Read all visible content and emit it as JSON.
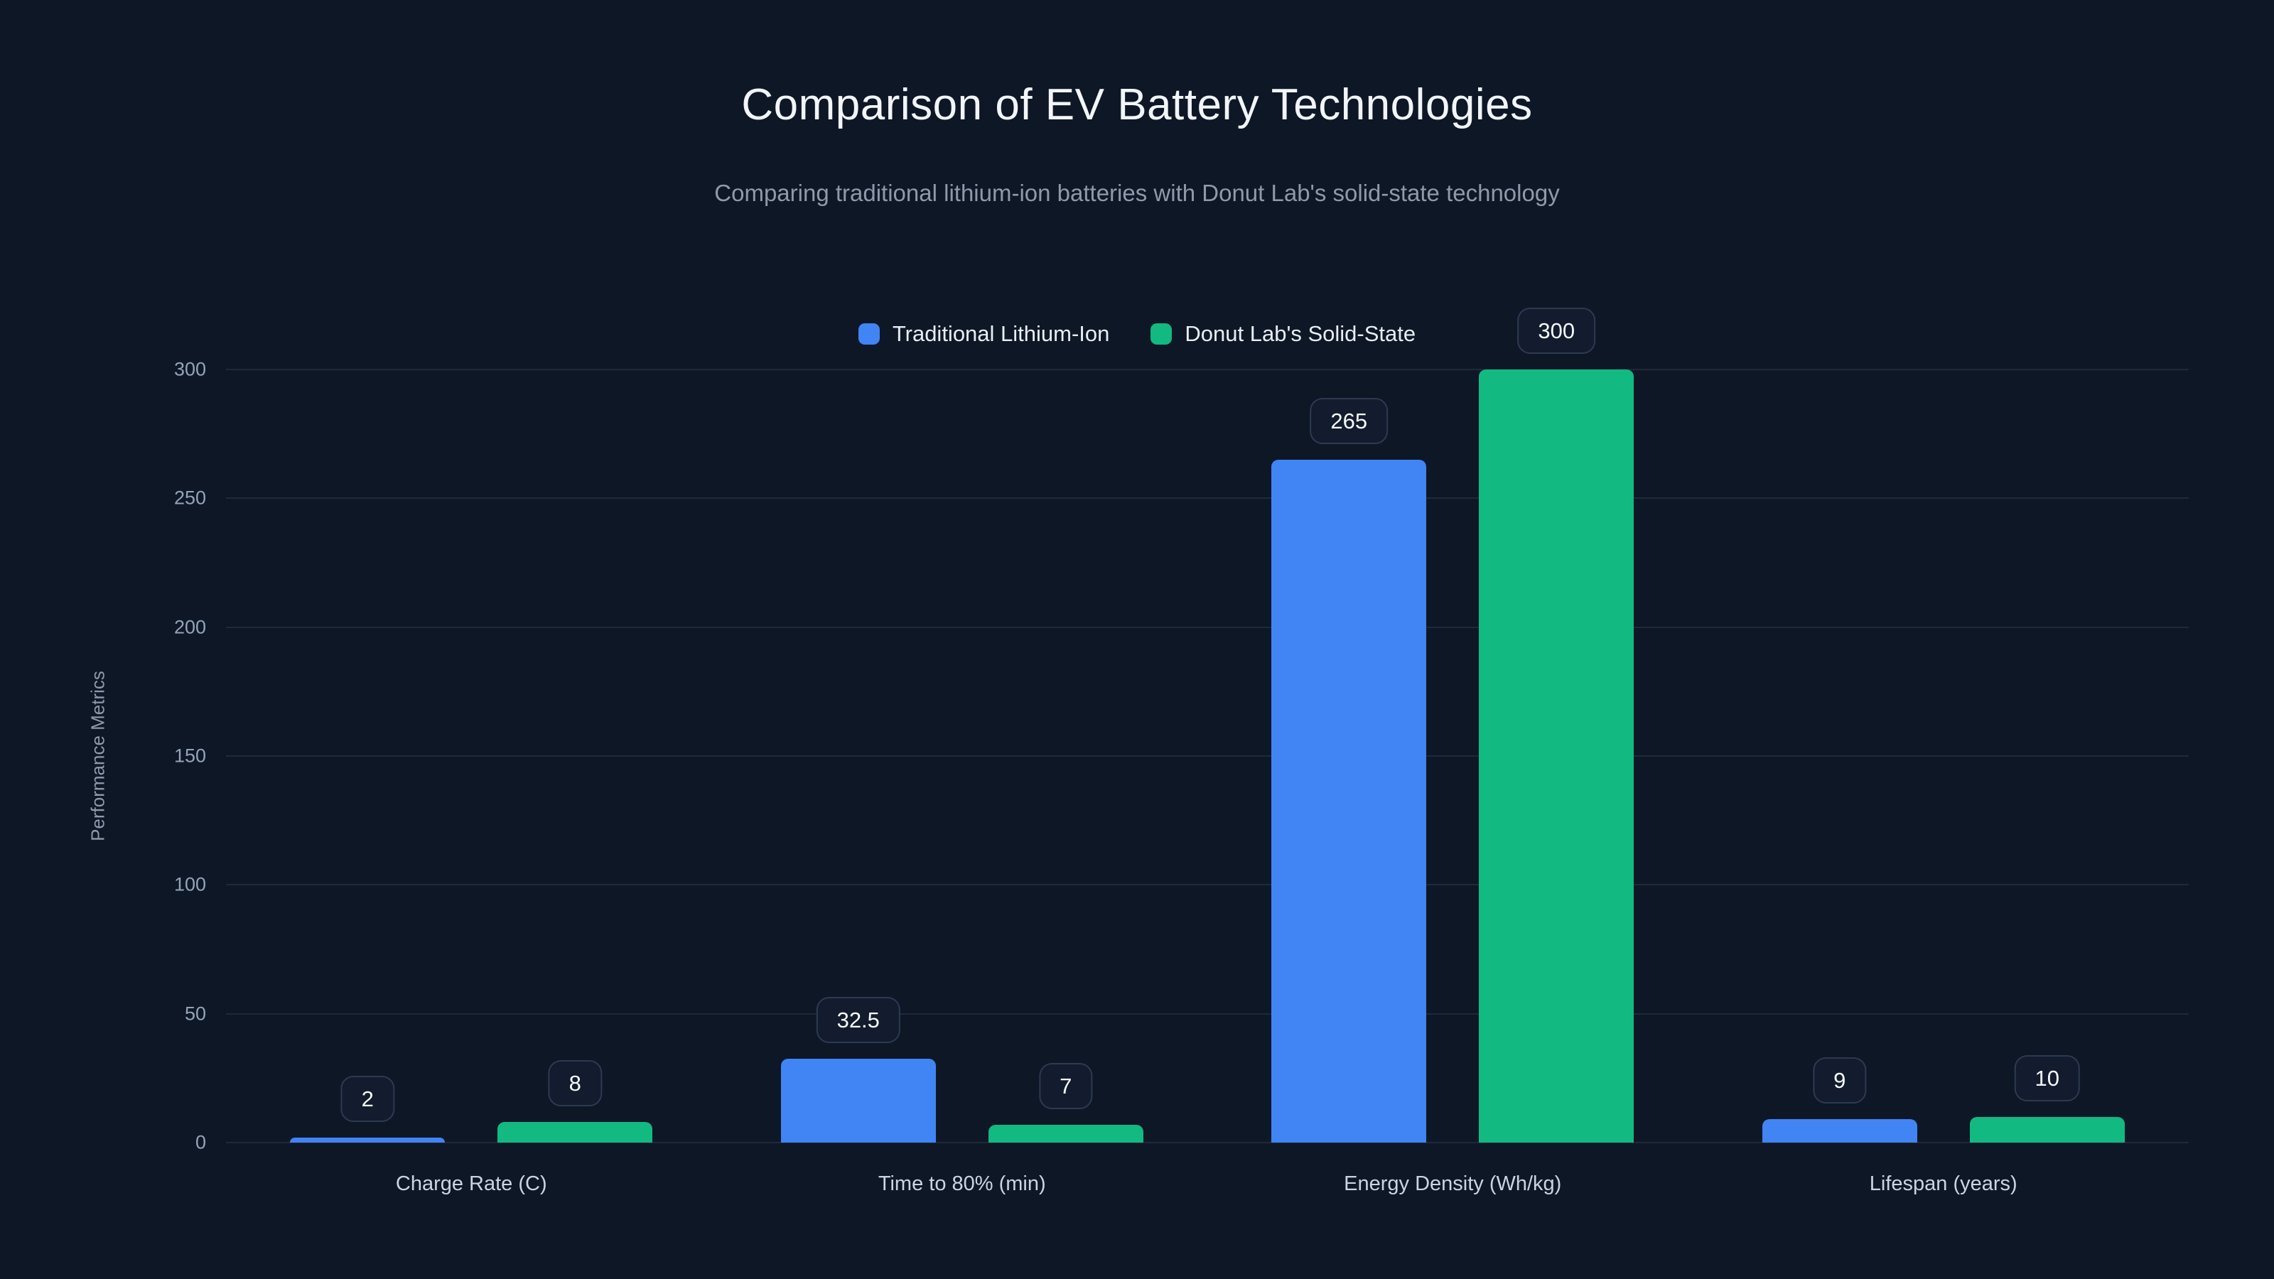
{
  "chart_data": {
    "type": "bar",
    "title": "Comparison of EV Battery Technologies",
    "subtitle": "Comparing traditional lithium-ion batteries with Donut Lab's solid-state technology",
    "ylabel": "Performance Metrics",
    "xlabel": "",
    "ylim": [
      0,
      300
    ],
    "yticks": [
      0,
      50,
      100,
      150,
      200,
      250,
      300
    ],
    "grid": true,
    "legend_position": "top-center",
    "categories": [
      "Charge Rate (C)",
      "Time to 80% (min)",
      "Energy Density (Wh/kg)",
      "Lifespan (years)"
    ],
    "series": [
      {
        "name": "Traditional Lithium-Ion",
        "color": "#4184f4",
        "values": [
          2,
          32.5,
          265,
          9
        ]
      },
      {
        "name": "Donut Lab's Solid-State",
        "color": "#12b981",
        "values": [
          8,
          7,
          300,
          10
        ]
      }
    ],
    "value_labels": [
      "2",
      "32.5",
      "265",
      "9",
      "8",
      "7",
      "300",
      "10"
    ]
  },
  "colors": {
    "background": "#0e1726",
    "title": "#f2f5f9",
    "subtitle": "#8e9aab",
    "axis_text": "#94a3b8",
    "category_text": "#cbd5e1",
    "gridline": "rgba(148,163,184,0.13)",
    "value_box_bg": "#121c2e",
    "value_box_border": "#2c3a52",
    "value_text": "#f8fafc",
    "series_blue": "#4184f4",
    "series_green": "#12b981"
  }
}
